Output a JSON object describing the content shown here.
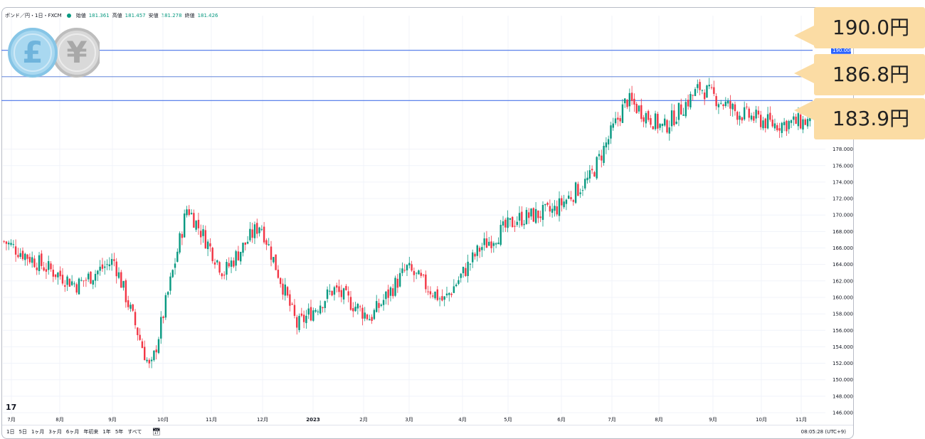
{
  "chart_data": {
    "type": "candlestick",
    "symbol_label": "ポンド／円・1日・FXCM",
    "ohlc_labels": {
      "open": "始値",
      "high": "高値",
      "low": "安値",
      "close": "終値"
    },
    "ohlc_values": {
      "open": "181.361",
      "high": "181.457",
      "low": "181.278",
      "close": "181.426"
    },
    "y_ticks": [
      "146.000",
      "148.000",
      "150.000",
      "152.000",
      "154.000",
      "156.000",
      "158.000",
      "160.000",
      "162.000",
      "164.000",
      "166.000",
      "168.000",
      "170.000",
      "172.000",
      "174.000",
      "176.000",
      "178.000"
    ],
    "ylim": [
      146,
      190
    ],
    "x_ticks": [
      "7月",
      "8月",
      "9月",
      "10月",
      "11月",
      "12月",
      "2023",
      "2月",
      "3月",
      "4月",
      "5月",
      "6月",
      "7月",
      "8月",
      "9月",
      "10月",
      "11月"
    ],
    "price_tags": [
      "190.000"
    ],
    "horizontal_levels": [
      {
        "value": 190.0,
        "color": "#4a74e8"
      },
      {
        "value": 186.8,
        "color": "#7f9de0"
      },
      {
        "value": 183.9,
        "color": "#4a74e8"
      }
    ],
    "monthly_path": [
      166.8,
      164.0,
      161.5,
      164.5,
      151.0,
      171.0,
      163.0,
      169.0,
      156.5,
      161.0,
      157.5,
      163.5,
      159.5,
      166.0,
      169.5,
      170.5,
      174.5,
      184.0,
      180.5,
      185.5,
      182.5,
      181.0,
      181.4
    ],
    "colors": {
      "up": "#089981",
      "down": "#f23645"
    }
  },
  "callouts": [
    {
      "label": "190.0円"
    },
    {
      "label": "186.8円"
    },
    {
      "label": "183.9円"
    }
  ],
  "bottom_bar": {
    "ranges": [
      "1日",
      "5日",
      "1ヶ月",
      "3ヶ月",
      "6ヶ月",
      "年初来",
      "1年",
      "5年",
      "すべて"
    ],
    "clock": "08:05:28 (UTC+9)"
  },
  "logo": {
    "pound": "£",
    "yen": "¥"
  }
}
